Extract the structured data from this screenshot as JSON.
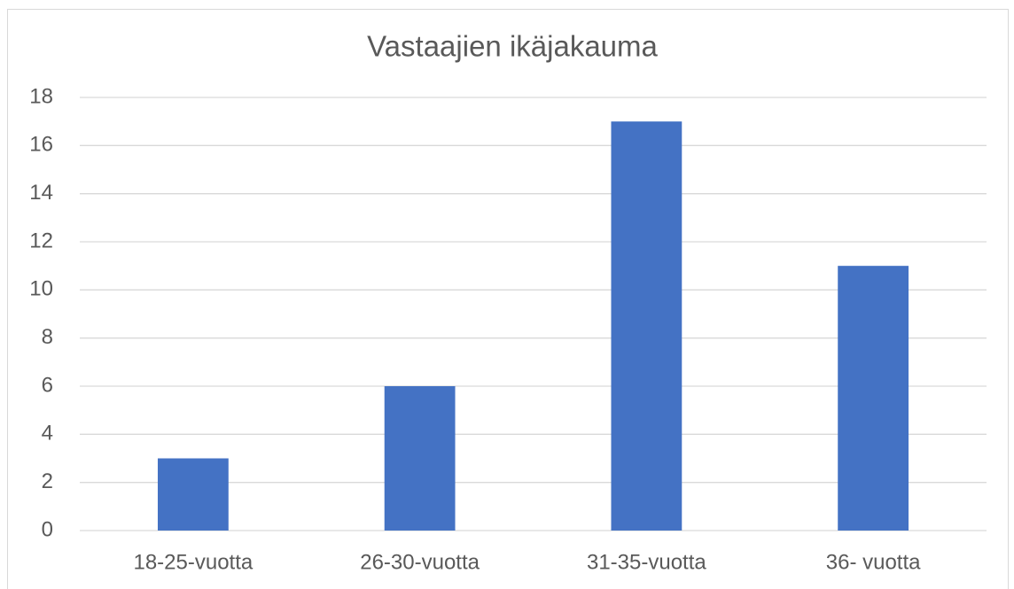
{
  "chart_data": {
    "type": "bar",
    "title": "Vastaajien ikäjakauma",
    "categories": [
      "18-25-vuotta",
      "26-30-vuotta",
      "31-35-vuotta",
      "36- vuotta"
    ],
    "values": [
      3,
      6,
      17,
      11
    ],
    "color": "#4472c4",
    "ylim": [
      0,
      18
    ],
    "yticks": [
      0,
      2,
      4,
      6,
      8,
      10,
      12,
      14,
      16,
      18
    ],
    "grid": true
  }
}
